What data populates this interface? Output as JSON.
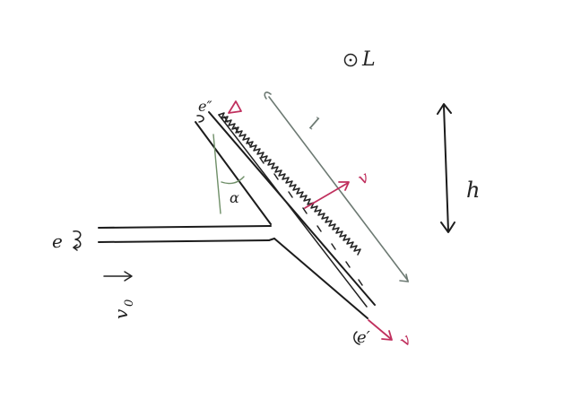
{
  "labels": {
    "field_symbol": "L",
    "height": "h",
    "length": "l",
    "angle": "α",
    "inlet_label": "e",
    "inlet_velocity_letter": "v",
    "inlet_velocity_subscript": "0",
    "side_velocity": "v",
    "outlet_top": "e″",
    "outlet_bottom": "e′",
    "outlet_velocity": "v"
  },
  "colors": {
    "ink": "#1c1c1c",
    "accent": "#c0305e",
    "guide": "#6d7a73",
    "angle_line": "#6f8f68"
  },
  "icons": [
    "out-of-page-dot-icon",
    "recirculation-arrow-icon",
    "double-headed-arrow-icon",
    "triangle-marker-icon"
  ]
}
